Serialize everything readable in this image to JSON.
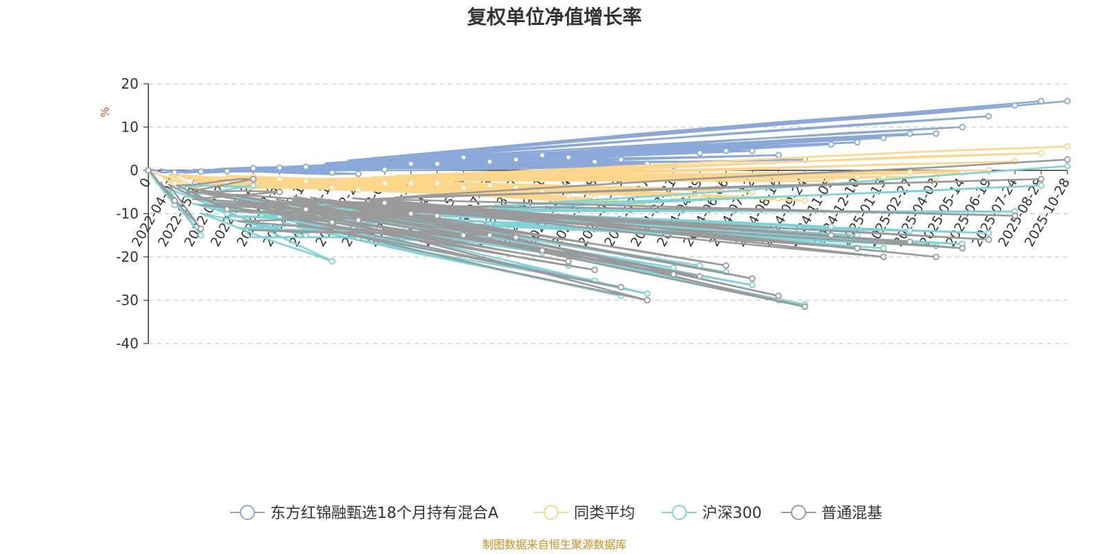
{
  "chart_data": {
    "type": "line",
    "title": "复权单位净值增长率",
    "ylabel": "%",
    "ylim": [
      -40,
      20
    ],
    "yticks": [
      20,
      10,
      0,
      -10,
      -20,
      -30,
      -40
    ],
    "grid": true,
    "legend_position": "bottom-center",
    "x_ticks": [
      "0",
      "2022-04-07",
      "2022-05-17",
      "2022-06-22",
      "2022-07-27",
      "2022-08-31",
      "2022-10-13",
      "2022-11-17",
      "2022-12-22",
      "2023-02-03",
      "2023-03-10",
      "2023-04-17",
      "2023-05-25",
      "2023-07-03",
      "2023-08-07",
      "2023-09-11",
      "2023-10-24",
      "2023-11-28",
      "2024-01-03",
      "2024-02-07",
      "2024-03-21",
      "2024-04-29",
      "2024-06-06",
      "2024-07-12",
      "2024-08-16",
      "2024-09-24",
      "2024-11-05",
      "2024-12-10",
      "2025-01-15",
      "2025-02-27",
      "2025-04-03",
      "2025-05-14",
      "2025-06-19",
      "2025-07-24",
      "2025-08-28",
      "2025-10-28"
    ],
    "series": [
      {
        "name": "东方红锦融甄选18个月持有混合A",
        "color": "#8aa8d8",
        "values": [
          0,
          -0.5,
          -0.3,
          -0.2,
          0.5,
          0.6,
          0.8,
          -0.5,
          -0.8,
          0.2,
          1.5,
          1.5,
          3.0,
          2.0,
          2.5,
          3.5,
          3.0,
          2.0,
          2.5,
          1.5,
          1.0,
          4.0,
          4.5,
          4.5,
          3.5,
          2.5,
          6.0,
          6.5,
          7.5,
          8.5,
          8.5,
          10.0,
          12.5,
          15.0,
          16.0,
          16.0
        ]
      },
      {
        "name": "同类平均",
        "color": "#fdd68c",
        "values": [
          0,
          -3.0,
          -4.5,
          -3.0,
          -1.5,
          -2.0,
          -2.5,
          -4.0,
          -4.5,
          -3.0,
          -3.0,
          -3.0,
          -4.0,
          -3.5,
          -4.0,
          -5.0,
          -6.0,
          -6.5,
          -7.0,
          -8.0,
          -6.0,
          -5.5,
          -4.5,
          -5.0,
          -6.5,
          -7.0,
          -2.5,
          -1.5,
          -1.5,
          -0.5,
          -1.5,
          -0.5,
          0.0,
          2.0,
          4.0,
          5.5
        ]
      },
      {
        "name": "沪深300",
        "color": "#7fd3d8",
        "values": [
          0,
          -8.0,
          -15.0,
          -10.0,
          -3.5,
          -10.5,
          -15.0,
          -21.0,
          -15.5,
          -11.0,
          -12.5,
          -11.0,
          -15.5,
          -16.5,
          -14.5,
          -19.0,
          -22.0,
          -25.5,
          -29.0,
          -28.5,
          -22.5,
          -22.0,
          -23.5,
          -26.5,
          -30.0,
          -31.0,
          -13.0,
          -15.0,
          -18.0,
          -14.0,
          -17.5,
          -17.0,
          -14.5,
          -9.5,
          -3.5,
          1.0
        ]
      },
      {
        "name": "普通混基",
        "color": "#9a9a9a",
        "values": [
          0,
          -7.0,
          -13.5,
          -9.0,
          -2.0,
          -5.0,
          -9.0,
          -12.0,
          -11.5,
          -7.5,
          -10.0,
          -10.5,
          -15.0,
          -15.0,
          -15.5,
          -18.5,
          -21.0,
          -23.0,
          -27.0,
          -30.0,
          -24.0,
          -24.5,
          -22.0,
          -25.0,
          -29.0,
          -31.5,
          -15.0,
          -18.0,
          -20.0,
          -16.5,
          -20.0,
          -18.0,
          -16.0,
          -10.5,
          -2.0,
          2.5
        ]
      }
    ]
  },
  "source_note": "制图数据来自恒生聚源数据库",
  "axis_color": "#333333",
  "grid_color": "#cccccc",
  "unit_color": "#e8453c",
  "source_color": "#c8901e"
}
